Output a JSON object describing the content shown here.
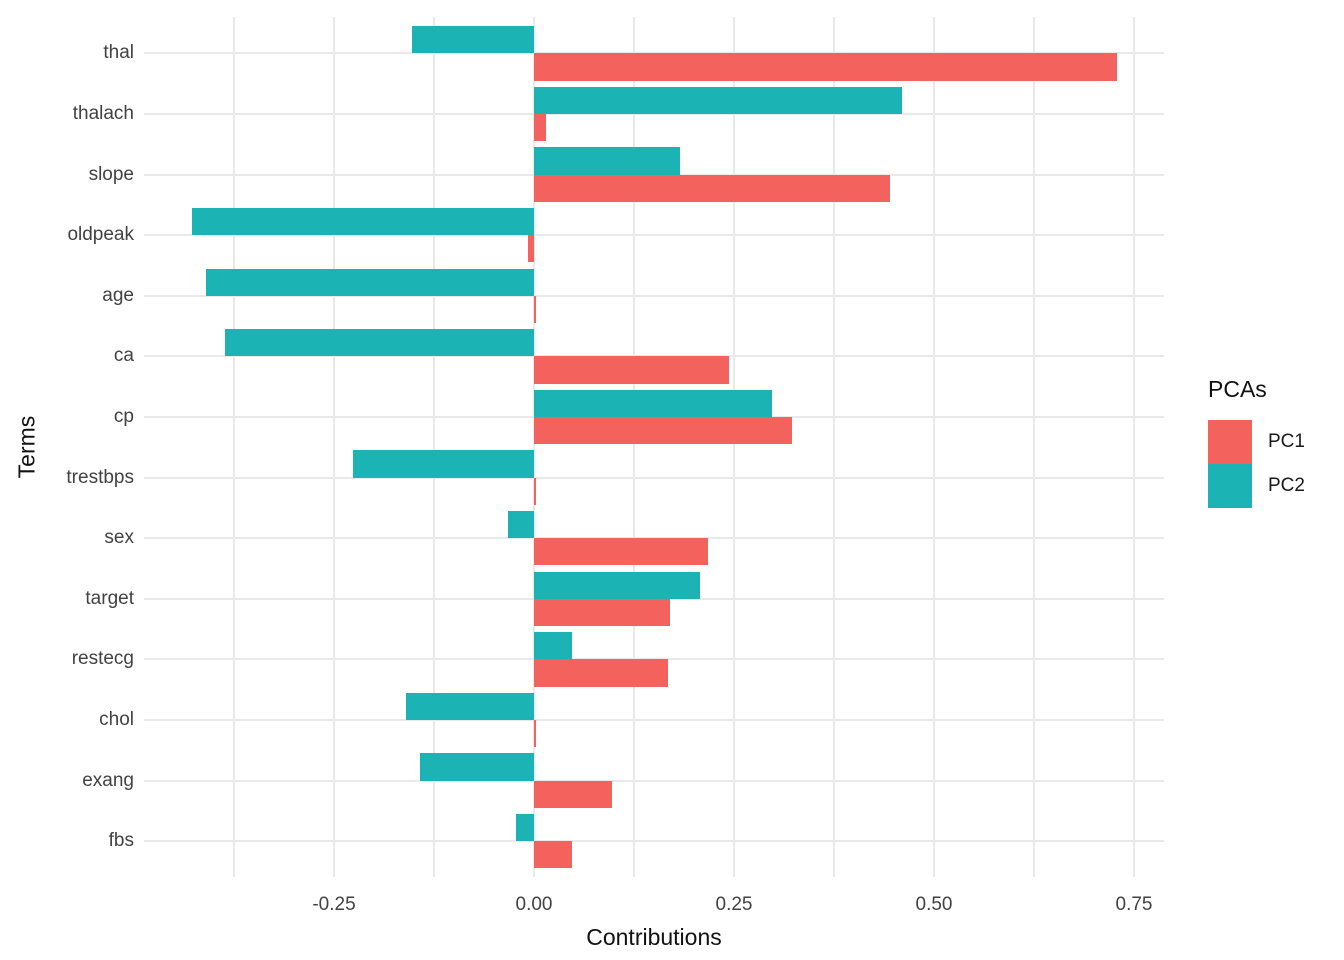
{
  "chart_data": {
    "type": "bar",
    "orientation": "horizontal",
    "title": "",
    "xlabel": "Contributions",
    "ylabel": "Terms",
    "categories": [
      "thal",
      "thalach",
      "slope",
      "oldpeak",
      "age",
      "ca",
      "cp",
      "trestbps",
      "sex",
      "target",
      "restecg",
      "chol",
      "exang",
      "fbs"
    ],
    "series": [
      {
        "name": "PC1",
        "color": "#F3625D",
        "values": [
          0.729,
          0.015,
          0.445,
          -0.008,
          0.002,
          0.244,
          0.323,
          0.003,
          0.217,
          0.17,
          0.167,
          0.002,
          0.098,
          0.048
        ]
      },
      {
        "name": "PC2",
        "color": "#1CB3B4",
        "values": [
          -0.152,
          0.46,
          0.182,
          -0.428,
          -0.41,
          -0.386,
          0.297,
          -0.226,
          -0.032,
          0.208,
          0.047,
          -0.16,
          -0.142,
          -0.022
        ]
      }
    ],
    "dodge_order_top_to_bottom": [
      "PC2",
      "PC1"
    ],
    "xlim": [
      -0.4875,
      0.7875
    ],
    "x_ticks": [
      -0.25,
      0.0,
      0.25,
      0.5,
      0.75
    ],
    "x_tick_labels": [
      "-0.25",
      "0.00",
      "0.25",
      "0.50",
      "0.75"
    ],
    "gridline_step": 0.125,
    "grid": true,
    "legend": {
      "title": "PCAs",
      "position": "right",
      "items": [
        "PC1",
        "PC2"
      ]
    },
    "colors": {
      "background": "#FFFFFF",
      "gridline": "#E9E9E9",
      "axis_text": "#424242",
      "axis_title": "#111111",
      "pc1": "#F3625D",
      "pc2": "#1CB3B4"
    }
  }
}
